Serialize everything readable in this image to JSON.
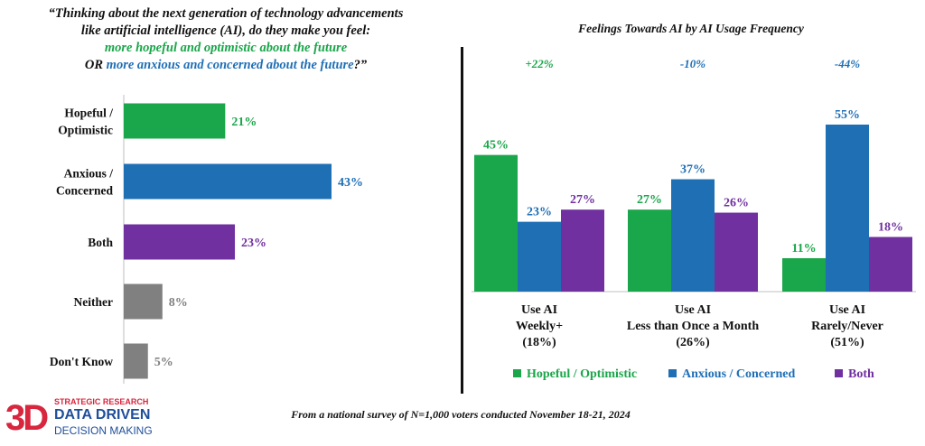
{
  "question": {
    "line1": "“Thinking about the next generation of technology advancements",
    "line2": "like artificial intelligence (AI), do they make you feel:",
    "option1": "more hopeful and optimistic about the future",
    "or_prefix": "OR ",
    "option2": "more anxious and concerned about the future",
    "suffix": "?”"
  },
  "source_note": "From a national survey of N=1,000 voters conducted November 18-21, 2024",
  "logo": {
    "mark": "3D",
    "line1": "STRATEGIC RESEARCH",
    "line2": "DATA DRIVEN",
    "line3": "DECISION MAKING"
  },
  "colors": {
    "green": "#1aa64a",
    "blue": "#1f6fb5",
    "purple": "#7030a0",
    "gray": "#808080"
  },
  "chart_data": [
    {
      "type": "bar",
      "orientation": "horizontal",
      "title": "",
      "categories": [
        "Hopeful / Optimistic",
        "Anxious / Concerned",
        "Both",
        "Neither",
        "Don't Know"
      ],
      "category_lines": [
        [
          "Hopeful /",
          "Optimistic"
        ],
        [
          "Anxious /",
          "Concerned"
        ],
        [
          "Both"
        ],
        [
          "Neither"
        ],
        [
          "Don't Know"
        ]
      ],
      "values": [
        21,
        43,
        23,
        8,
        5
      ],
      "value_labels": [
        "21%",
        "43%",
        "23%",
        "8%",
        "5%"
      ],
      "bar_colors": [
        "#1aa64a",
        "#1f6fb5",
        "#7030a0",
        "#808080",
        "#808080"
      ],
      "xlim": [
        0,
        60
      ],
      "grid": false
    },
    {
      "type": "bar",
      "title": "Feelings Towards AI by AI Usage Frequency",
      "categories": [
        "Use AI Weekly+ (18%)",
        "Use AI Less than Once a Month (26%)",
        "Use AI Rarely/Never (51%)"
      ],
      "category_lines": [
        [
          "Use AI",
          "Weekly+",
          "(18%)"
        ],
        [
          "Use AI",
          "Less than Once a Month",
          "(26%)"
        ],
        [
          "Use AI",
          "Rarely/Never",
          "(51%)"
        ]
      ],
      "differences": [
        "+22%",
        "-10%",
        "-44%"
      ],
      "difference_colors": [
        "#1aa64a",
        "#1f6fb5",
        "#1f6fb5"
      ],
      "series": [
        {
          "name": "Hopeful / Optimistic",
          "color": "#1aa64a",
          "values": [
            45,
            27,
            11
          ],
          "labels": [
            "45%",
            "27%",
            "11%"
          ]
        },
        {
          "name": "Anxious / Concerned",
          "color": "#1f6fb5",
          "values": [
            23,
            37,
            55
          ],
          "labels": [
            "23%",
            "37%",
            "55%"
          ]
        },
        {
          "name": "Both",
          "color": "#7030a0",
          "values": [
            27,
            26,
            18
          ],
          "labels": [
            "27%",
            "26%",
            "18%"
          ]
        }
      ],
      "ylim": [
        0,
        60
      ],
      "legend": "bottom",
      "grid": false
    }
  ]
}
